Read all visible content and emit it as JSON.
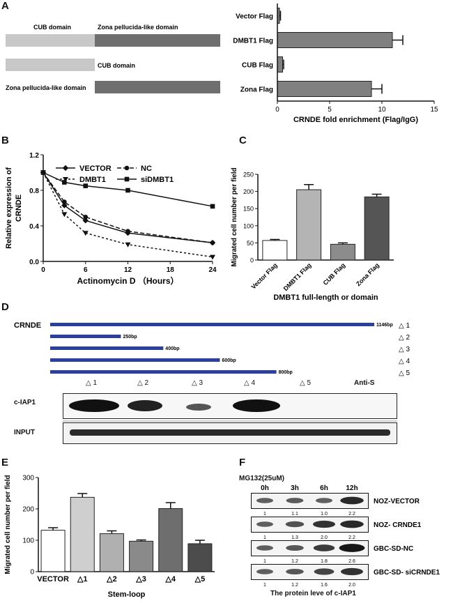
{
  "panels": {
    "A": {
      "label": "A",
      "diagram": {
        "full_cub": "CUB domain",
        "full_zona": "Zona pellucida-like domain",
        "cub_only": "CUB domain",
        "zona_only": "Zona pellucida-like domain",
        "colors": {
          "cub": "#c8c8c8",
          "zona": "#6f6f6f"
        }
      }
    },
    "B": {
      "label": "B"
    },
    "C": {
      "label": "C"
    },
    "D": {
      "label": "D",
      "crnde_label": "CRNDE",
      "fragments": [
        {
          "length_label": "1146bp",
          "delta": "△ 1",
          "length": 1146
        },
        {
          "length_label": "250bp",
          "delta": "△ 2",
          "length": 250
        },
        {
          "length_label": "400bp",
          "delta": "△ 3",
          "length": 400
        },
        {
          "length_label": "600bp",
          "delta": "△ 4",
          "length": 600
        },
        {
          "length_label": "800bp",
          "delta": "△ 5",
          "length": 800
        }
      ],
      "lane_labels": [
        "△ 1",
        "△ 2",
        "△ 3",
        "△ 4",
        "△ 5",
        "Anti-S"
      ],
      "blot_rows": [
        "c-IAP1",
        "INPUT"
      ],
      "bar_color": "#2b3f9e"
    },
    "E": {
      "label": "E"
    },
    "F": {
      "label": "F",
      "treatment": "MG132(25uM)",
      "timepoints": [
        "0h",
        "3h",
        "6h",
        "12h"
      ],
      "rows": [
        {
          "name": "NOZ-VECTOR",
          "values": [
            "1",
            "1.1",
            "1.0",
            "2.2"
          ]
        },
        {
          "name": "NOZ- CRNDE1",
          "values": [
            "1",
            "1.3",
            "2.0",
            "2.2"
          ]
        },
        {
          "name": "GBC-SD-NC",
          "values": [
            "1",
            "1.2",
            "1.8",
            "2.6"
          ]
        },
        {
          "name": "GBC-SD- siCRNDE1",
          "values": [
            "1",
            "1.2",
            "1.6",
            "2.0"
          ]
        }
      ],
      "caption": "The protein leve of c-IAP1"
    }
  },
  "chart_data": [
    {
      "id": "A-right",
      "type": "bar",
      "orientation": "horizontal",
      "categories": [
        "Vector Flag",
        "DMBT1 Flag",
        "CUB Flag",
        "Zona Flag"
      ],
      "values": [
        0.2,
        11,
        0.5,
        9
      ],
      "errors": [
        0.1,
        1.0,
        0.1,
        1.0
      ],
      "xlabel": "CRNDE fold enrichment (Flag/IgG)",
      "xlim": [
        0,
        15
      ],
      "xticks": [
        "0",
        "5",
        "10",
        "15"
      ],
      "bar_color": "#808080"
    },
    {
      "id": "B",
      "type": "line",
      "x": [
        0,
        3,
        6,
        12,
        24
      ],
      "series": [
        {
          "name": "VECTOR",
          "values": [
            1.0,
            0.63,
            0.46,
            0.32,
            0.21
          ],
          "marker": "diamond",
          "dash": ""
        },
        {
          "name": "NC",
          "values": [
            1.0,
            0.67,
            0.5,
            0.34,
            0.21
          ],
          "marker": "circle",
          "dash": "6,3"
        },
        {
          "name": "DMBT1",
          "values": [
            1.0,
            0.53,
            0.32,
            0.19,
            0.05
          ],
          "marker": "triangle-down",
          "dash": "3,3"
        },
        {
          "name": "siDMBT1",
          "values": [
            1.0,
            0.89,
            0.85,
            0.8,
            0.62
          ],
          "marker": "square",
          "dash": ""
        }
      ],
      "xlabel": "Actinomycin D （Hours）",
      "ylabel_lines": [
        "Relative expression of",
        "CRNDE"
      ],
      "xlim": [
        0,
        24
      ],
      "ylim": [
        0,
        1.2
      ],
      "xticks": [
        "0",
        "6",
        "12",
        "18",
        "24"
      ],
      "yticks": [
        "0.0",
        "0.4",
        "0.8",
        "1.2"
      ]
    },
    {
      "id": "C",
      "type": "bar",
      "categories": [
        "Vector Flag",
        "DMBT1 Flag",
        "CUB Flag",
        "Zona Flag"
      ],
      "values": [
        57,
        205,
        46,
        184
      ],
      "errors": [
        3,
        15,
        4,
        8
      ],
      "colors": [
        "#ffffff",
        "#b4b4b4",
        "#8c8c8c",
        "#555555"
      ],
      "ylabel": "Migrated cell number per field",
      "xlabel": "DMBT1 full-length or domain",
      "ylim": [
        0,
        250
      ],
      "yticks": [
        "0",
        "50",
        "100",
        "150",
        "200",
        "250"
      ]
    },
    {
      "id": "E",
      "type": "bar",
      "categories": [
        "VECTOR",
        "△1",
        "△2",
        "△3",
        "△4",
        "△5"
      ],
      "values": [
        132,
        237,
        121,
        97,
        201,
        89
      ],
      "errors": [
        8,
        12,
        9,
        4,
        19,
        11
      ],
      "colors": [
        "#ffffff",
        "#cfcfcf",
        "#b0b0b0",
        "#8a8a8a",
        "#6e6e6e",
        "#4c4c4c"
      ],
      "ylabel": "Migrated cell number per field",
      "xlabel": "Stem-loop",
      "ylim": [
        0,
        300
      ],
      "yticks": [
        "0",
        "100",
        "200",
        "300"
      ]
    }
  ]
}
